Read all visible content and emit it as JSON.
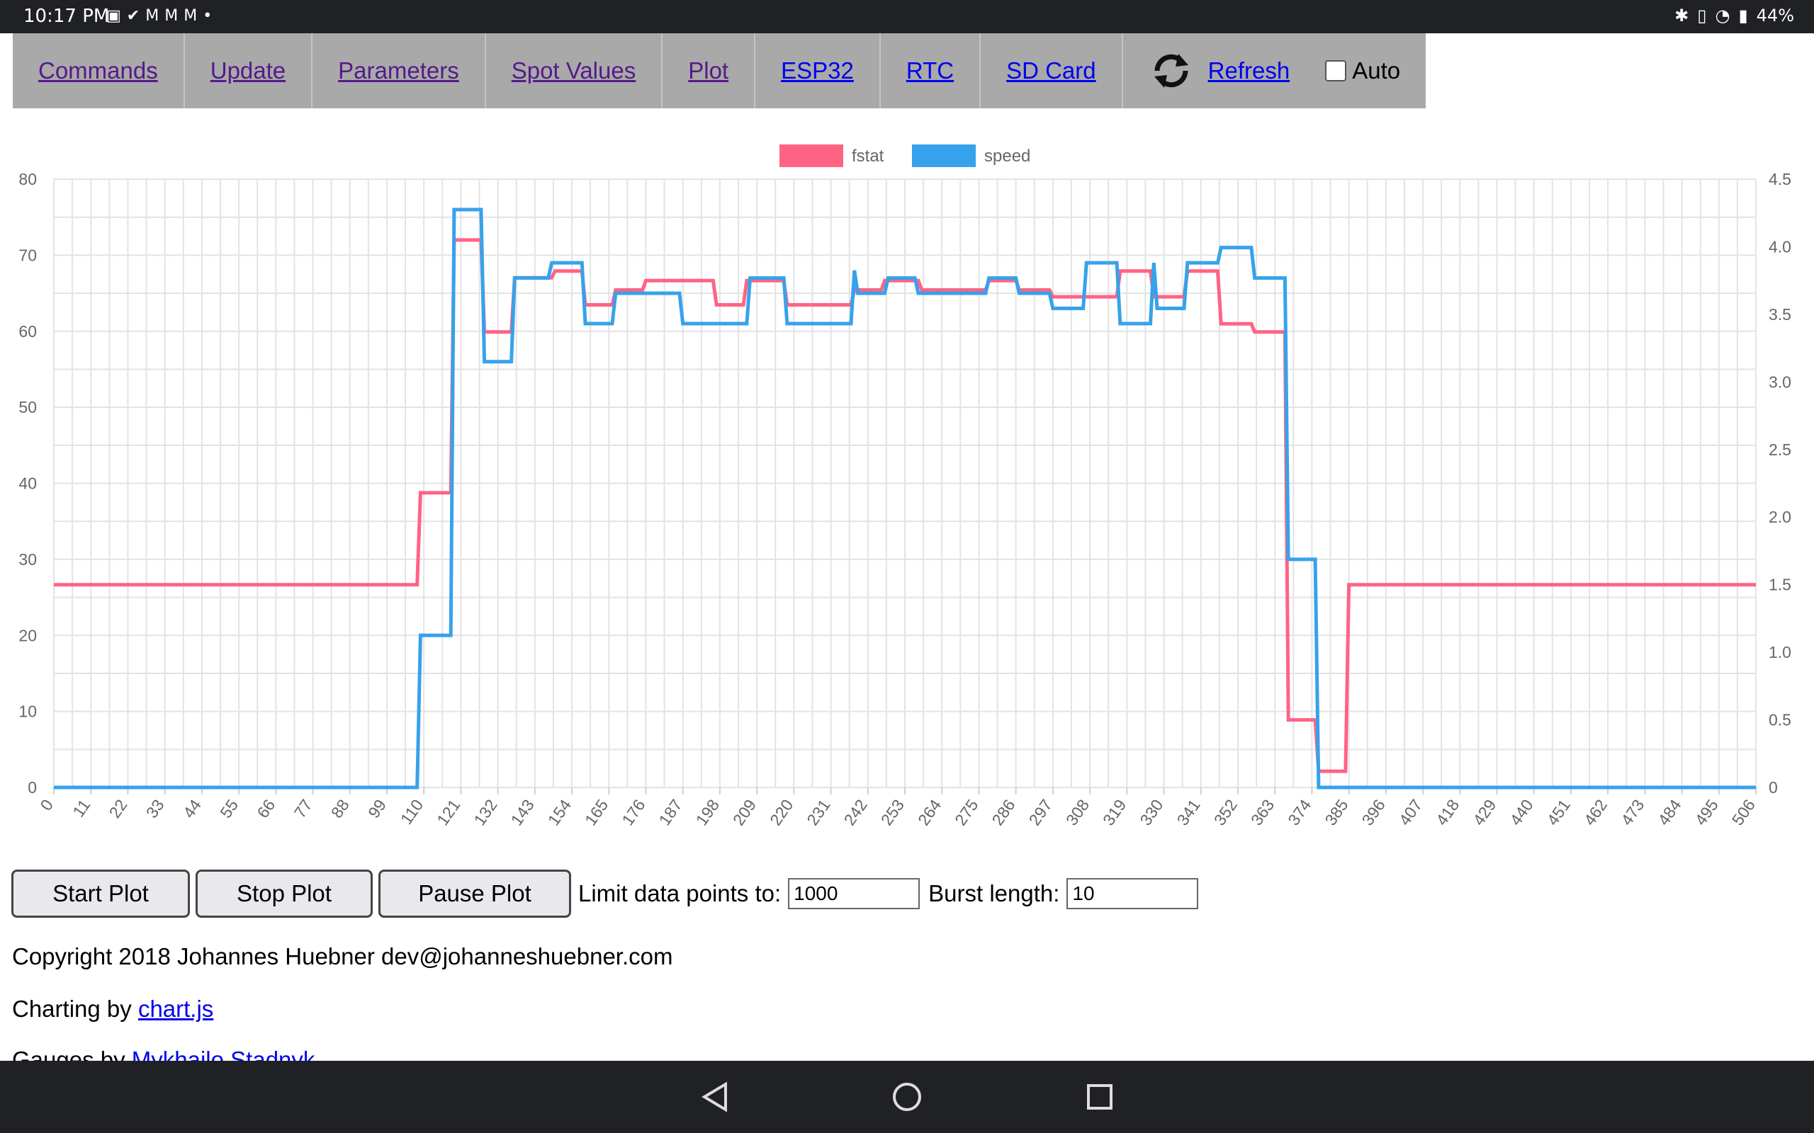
{
  "status_bar": {
    "time": "10:17 PM",
    "left_icons": [
      "image-icon",
      "check-circle-icon",
      "gmail-icon",
      "gmail-icon",
      "gmail-icon",
      "dot-icon"
    ],
    "right_icons": [
      "bluetooth-icon",
      "vibrate-icon",
      "wifi-icon",
      "battery-icon"
    ],
    "battery": "44%"
  },
  "nav": {
    "items": [
      {
        "label": "Commands"
      },
      {
        "label": "Update"
      },
      {
        "label": "Parameters"
      },
      {
        "label": "Spot Values"
      },
      {
        "label": "Plot"
      },
      {
        "label": "ESP32"
      },
      {
        "label": "RTC"
      },
      {
        "label": "SD Card"
      }
    ],
    "refresh_label": "Refresh",
    "auto_label": "Auto",
    "auto_checked": false
  },
  "chart_data": {
    "type": "line",
    "title": "",
    "legend_position": "top",
    "grid": true,
    "x_ticks": [
      0,
      11,
      22,
      33,
      44,
      55,
      66,
      77,
      88,
      99,
      110,
      121,
      132,
      143,
      154,
      165,
      176,
      187,
      198,
      209,
      220,
      231,
      242,
      253,
      264,
      275,
      286,
      297,
      308,
      319,
      330,
      341,
      352,
      363,
      374,
      385,
      396,
      407,
      418,
      429,
      440,
      451,
      462,
      473,
      484,
      495,
      506
    ],
    "x_range": [
      0,
      506
    ],
    "y_left": {
      "range": [
        0,
        80
      ],
      "ticks": [
        0,
        10,
        20,
        30,
        40,
        50,
        60,
        70,
        80
      ]
    },
    "y_right": {
      "range": [
        0,
        4.5
      ],
      "ticks": [
        "0",
        "0.5",
        "1.0",
        "1.5",
        "2.0",
        "2.5",
        "3.0",
        "3.5",
        "4.0",
        "4.5"
      ]
    },
    "series": [
      {
        "name": "fstat",
        "axis": "right",
        "color": "#ff6384",
        "points": [
          [
            0,
            1.5
          ],
          [
            108,
            1.5
          ],
          [
            109,
            2.18
          ],
          [
            118,
            2.18
          ],
          [
            119,
            4.05
          ],
          [
            127,
            4.05
          ],
          [
            128,
            3.37
          ],
          [
            136,
            3.37
          ],
          [
            137,
            3.77
          ],
          [
            148,
            3.77
          ],
          [
            149,
            3.82
          ],
          [
            157,
            3.82
          ],
          [
            158,
            3.57
          ],
          [
            166,
            3.57
          ],
          [
            167,
            3.68
          ],
          [
            175,
            3.68
          ],
          [
            176,
            3.75
          ],
          [
            196,
            3.75
          ],
          [
            197,
            3.57
          ],
          [
            205,
            3.57
          ],
          [
            206,
            3.75
          ],
          [
            217,
            3.75
          ],
          [
            218,
            3.57
          ],
          [
            237,
            3.57
          ],
          [
            238,
            3.68
          ],
          [
            246,
            3.68
          ],
          [
            247,
            3.75
          ],
          [
            257,
            3.75
          ],
          [
            258,
            3.68
          ],
          [
            277,
            3.68
          ],
          [
            278,
            3.75
          ],
          [
            286,
            3.75
          ],
          [
            287,
            3.68
          ],
          [
            296,
            3.68
          ],
          [
            297,
            3.63
          ],
          [
            316,
            3.63
          ],
          [
            317,
            3.82
          ],
          [
            326,
            3.82
          ],
          [
            327,
            3.63
          ],
          [
            336,
            3.63
          ],
          [
            337,
            3.82
          ],
          [
            346,
            3.82
          ],
          [
            347,
            3.43
          ],
          [
            356,
            3.43
          ],
          [
            357,
            3.37
          ],
          [
            366,
            3.37
          ],
          [
            367,
            0.5
          ],
          [
            375,
            0.5
          ],
          [
            376,
            0.12
          ],
          [
            384,
            0.12
          ],
          [
            385,
            1.5
          ],
          [
            506,
            1.5
          ]
        ]
      },
      {
        "name": "speed",
        "axis": "left",
        "color": "#36a2eb",
        "points": [
          [
            0,
            0
          ],
          [
            108,
            0
          ],
          [
            109,
            20
          ],
          [
            118,
            20
          ],
          [
            119,
            76
          ],
          [
            127,
            76
          ],
          [
            128,
            56
          ],
          [
            136,
            56
          ],
          [
            137,
            67
          ],
          [
            147,
            67
          ],
          [
            148,
            69
          ],
          [
            157,
            69
          ],
          [
            158,
            61
          ],
          [
            166,
            61
          ],
          [
            167,
            65
          ],
          [
            186,
            65
          ],
          [
            187,
            61
          ],
          [
            206,
            61
          ],
          [
            207,
            67
          ],
          [
            217,
            67
          ],
          [
            218,
            61
          ],
          [
            237,
            61
          ],
          [
            238,
            68
          ],
          [
            239,
            65
          ],
          [
            247,
            65
          ],
          [
            248,
            67
          ],
          [
            256,
            67
          ],
          [
            257,
            65
          ],
          [
            277,
            65
          ],
          [
            278,
            67
          ],
          [
            286,
            67
          ],
          [
            287,
            65
          ],
          [
            296,
            65
          ],
          [
            297,
            63
          ],
          [
            306,
            63
          ],
          [
            307,
            69
          ],
          [
            316,
            69
          ],
          [
            317,
            61
          ],
          [
            326,
            61
          ],
          [
            327,
            69
          ],
          [
            328,
            63
          ],
          [
            336,
            63
          ],
          [
            337,
            69
          ],
          [
            346,
            69
          ],
          [
            347,
            71
          ],
          [
            356,
            71
          ],
          [
            357,
            67
          ],
          [
            366,
            67
          ],
          [
            367,
            30
          ],
          [
            375,
            30
          ],
          [
            376,
            0
          ],
          [
            506,
            0
          ]
        ]
      }
    ]
  },
  "controls": {
    "start_label": "Start Plot",
    "stop_label": "Stop Plot",
    "pause_label": "Pause Plot",
    "limit_label": "Limit data points to:",
    "limit_value": "1000",
    "burst_label": "Burst length:",
    "burst_value": "10"
  },
  "footer": {
    "copyright": "Copyright 2018 Johannes Huebner dev@johanneshuebner.com",
    "charting_prefix": "Charting by",
    "charting_link": "chart.js",
    "gauges_prefix": "Gauges by",
    "gauges_link": "Mykhailo Stadnyk"
  }
}
